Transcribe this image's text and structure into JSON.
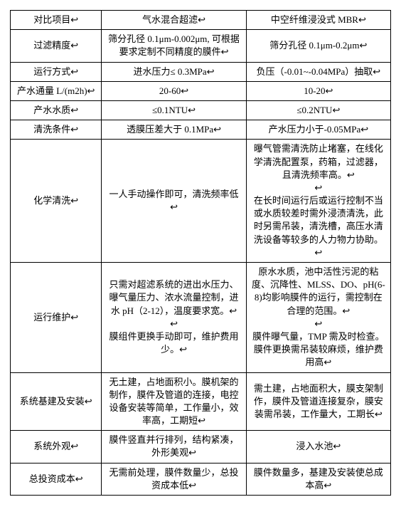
{
  "table": {
    "header": [
      "对比项目↩",
      "气水混合超滤↩",
      "中空纤维浸没式 MBR↩"
    ],
    "rows": [
      {
        "c1": "过滤精度↩",
        "c2": "筛分孔径 0.1μm-0.002μm, 可根据要求定制不同精度的膜件↩",
        "c3": "筛分孔径 0.1μm-0.2μm↩"
      },
      {
        "c1": "运行方式↩",
        "c2": "进水压力≤ 0.3MPa↩",
        "c3": "负压（-0.01~-0.04MPa）抽取↩"
      },
      {
        "c1": "产水通量 L/(m2h)↩",
        "c2": "20-60↩",
        "c3": "10-20↩"
      },
      {
        "c1": "产水水质↩",
        "c2": "≤0.1NTU↩",
        "c3": "≤0.2NTU↩"
      },
      {
        "c1": "清洗条件↩",
        "c2": "透膜压差大于 0.1MPa↩",
        "c3": "产水压力小于-0.05MPa↩"
      },
      {
        "c1": "化学清洗↩",
        "c2": "一人手动操作即可，清洗频率低↩",
        "c3": "曝气管需清洗防止堵塞，在线化学清洗配置泵，药箱，过滤器，且清洗频率高。↩\n↩\n在长时间运行后或运行控制不当或水质较差时需外浸渍清洗，此时另需吊装，清洗槽，高压水清洗设备等较多的人力物力协助。↩"
      },
      {
        "c1": "运行维护↩",
        "c2": "只需对超滤系统的进出水压力、曝气量压力、浓水流量控制，进水 pH（2-12），温度要求宽。↩\n↩\n膜组件更换手动即可，维护费用少。↩",
        "c3": "原水水质，池中活性污泥的粘度、沉降性、MLSS、DO、pH(6-8)均影响膜件的运行，需控制在合理的范围。↩\n↩\n膜件曝气量，TMP 需及时检查。膜件更换需吊装较麻烦，维护费用高↩"
      },
      {
        "c1": "系统基建及安装↩",
        "c2": "无土建，占地面积小。膜机架的制作，膜件及管道的连接，电控设备安装等简单，工作量小，效率高，工期短↩",
        "c3": "需土建，占地面积大，膜支架制作，膜件及管道连接复杂，膜安装需吊装，工作量大，工期长↩"
      },
      {
        "c1": "系统外观↩",
        "c2": "膜件竖直并行排列，结构紧凑，外形美观↩",
        "c3": "浸入水池↩"
      },
      {
        "c1": "总投资成本↩",
        "c2": "无需前处理，膜件数量少，总投资成本低↩",
        "c3": "膜件数量多，基建及安装使总成本高↩"
      }
    ]
  }
}
